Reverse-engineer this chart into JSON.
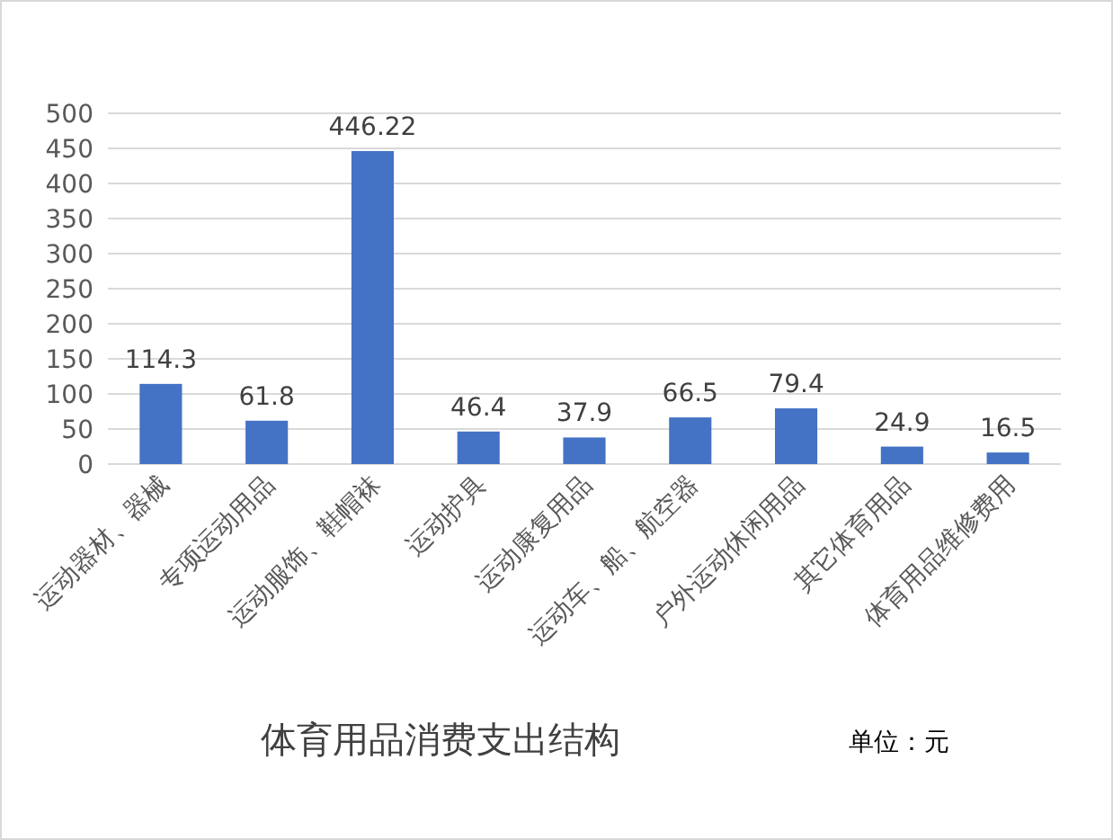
{
  "chart_data": {
    "type": "bar",
    "title": "体育用品消费支出结构",
    "annotations": [
      "单位：元"
    ],
    "categories": [
      "运动器材、器械",
      "专项运动用品",
      "运动服饰、鞋帽袜",
      "运动护具",
      "运动康复用品",
      "运动车、船、航空器",
      "户外运动休闲用品",
      "其它体育用品",
      "体育用品维修费用"
    ],
    "values": [
      114.3,
      61.8,
      446.22,
      46.4,
      37.9,
      66.5,
      79.4,
      24.9,
      16.5
    ],
    "color": "#4472c4",
    "ylim": [
      0,
      500
    ],
    "yticks": [
      0,
      50,
      100,
      150,
      200,
      250,
      300,
      350,
      400,
      450,
      500
    ],
    "grid": "y",
    "data_labels": true
  }
}
